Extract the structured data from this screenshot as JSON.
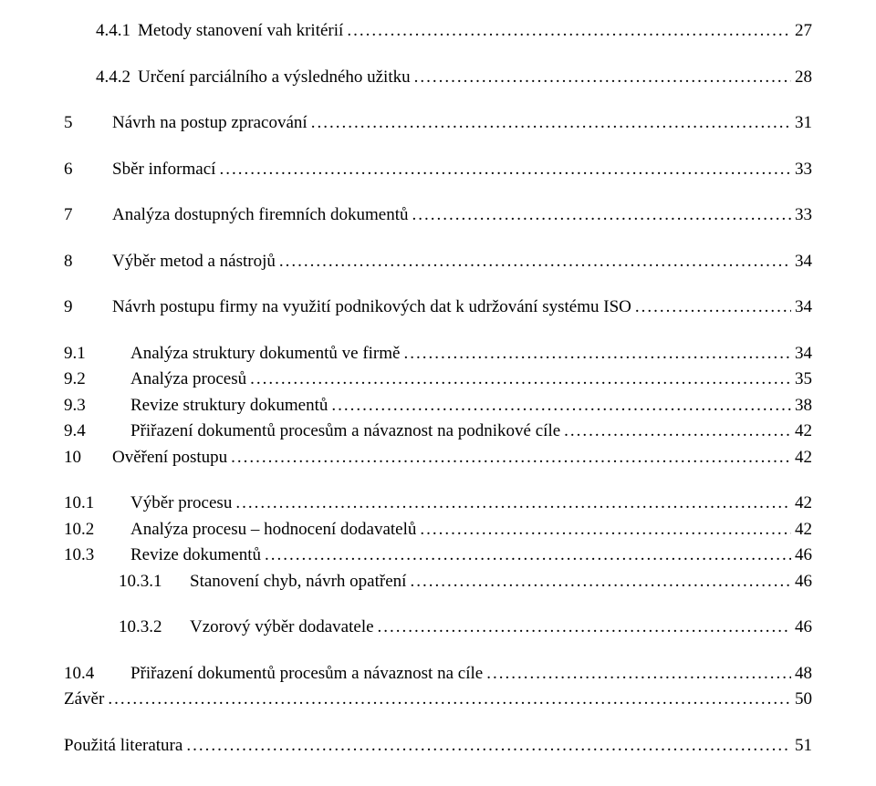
{
  "toc": [
    {
      "num": "4.4.1",
      "title": "Metody stanovení vah kritérií",
      "page": "27",
      "indent": "indent-0",
      "gapAfter": "gap-med"
    },
    {
      "num": "4.4.2",
      "title": "Určení parciálního a výsledného užitku",
      "page": "28",
      "indent": "indent-0",
      "gapAfter": "gap-med"
    },
    {
      "num": "5",
      "title": "Návrh na postup zpracování",
      "page": "31",
      "indent": "indent-1 wide-num",
      "gapAfter": "gap-med"
    },
    {
      "num": "6",
      "title": "Sběr informací",
      "page": "33",
      "indent": "indent-1 wide-num",
      "gapAfter": "gap-med"
    },
    {
      "num": "7",
      "title": "Analýza dostupných firemních dokumentů",
      "page": "33",
      "indent": "indent-1 wide-num",
      "gapAfter": "gap-med"
    },
    {
      "num": "8",
      "title": "Výběr metod a nástrojů",
      "page": "34",
      "indent": "indent-1 wide-num",
      "gapAfter": "gap-med"
    },
    {
      "num": "9",
      "title": "Návrh postupu firmy na využití podnikových dat k udržování systému ISO",
      "page": "34",
      "indent": "indent-1 wide-num",
      "gapAfter": "gap-med"
    },
    {
      "num": "9.1",
      "title": "Analýza struktury dokumentů ve firmě",
      "page": "34",
      "indent": "indent-1",
      "gapAfter": ""
    },
    {
      "num": "9.2",
      "title": "Analýza procesů",
      "page": "35",
      "indent": "indent-1",
      "gapAfter": ""
    },
    {
      "num": "9.3",
      "title": "Revize struktury dokumentů",
      "page": "38",
      "indent": "indent-1",
      "gapAfter": ""
    },
    {
      "num": "9.4",
      "title": "Přiřazení dokumentů procesům a návaznost na podnikové cíle",
      "page": "42",
      "indent": "indent-1",
      "gapAfter": ""
    },
    {
      "num": "10",
      "title": "Ověření postupu",
      "page": "42",
      "indent": "indent-1 wide-num",
      "gapAfter": "gap-med"
    },
    {
      "num": "10.1",
      "title": "Výběr procesu",
      "page": "42",
      "indent": "indent-1",
      "gapAfter": ""
    },
    {
      "num": "10.2",
      "title": "Analýza procesu – hodnocení dodavatelů",
      "page": "42",
      "indent": "indent-1",
      "gapAfter": ""
    },
    {
      "num": "10.3",
      "title": "Revize dokumentů",
      "page": "46",
      "indent": "indent-1",
      "gapAfter": ""
    },
    {
      "num": "10.3.1",
      "title": "Stanovení chyb, návrh opatření",
      "page": "46",
      "indent": "indent-3",
      "gapAfter": "gap-med"
    },
    {
      "num": "10.3.2",
      "title": "Vzorový výběr dodavatele",
      "page": "46",
      "indent": "indent-3",
      "gapAfter": "gap-med"
    },
    {
      "num": "10.4",
      "title": "Přiřazení dokumentů procesům a návaznost na cíle",
      "page": "48",
      "indent": "indent-1",
      "gapAfter": ""
    },
    {
      "num": "",
      "title": "Závěr",
      "page": "50",
      "indent": "indent-1 no-num",
      "gapAfter": "gap-med"
    },
    {
      "num": "",
      "title": "Použitá literatura",
      "page": "51",
      "indent": "indent-0b no-num",
      "gapAfter": ""
    }
  ]
}
